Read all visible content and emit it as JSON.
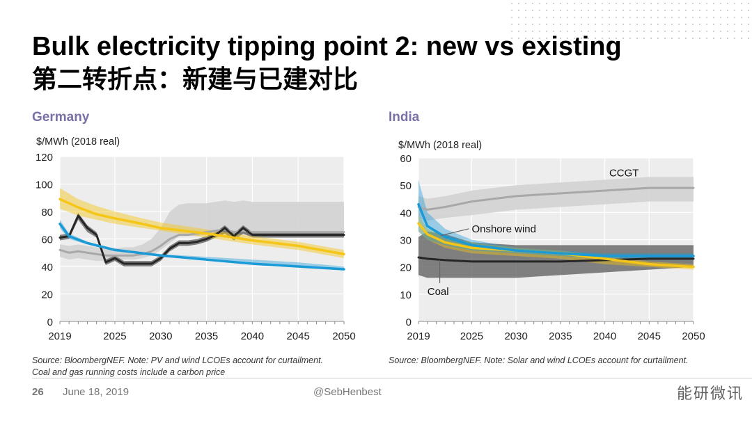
{
  "title": "Bulk electricity tipping point 2: new vs existing",
  "subtitle": "第二转折点：新建与已建对比",
  "footer": {
    "page": "26",
    "date": "June 18, 2019",
    "handle": "@SebHenbest"
  },
  "watermark": "能研微讯",
  "colors": {
    "solar": "#f5c518",
    "wind": "#1b9ad6",
    "gas_band": "#d0d0d0",
    "gas_line": "#a8a8a8",
    "coal_band": "#595959",
    "coal_line": "#262626",
    "heading": "#7b6fa8"
  },
  "chart_data": [
    {
      "type": "line",
      "title": "Germany",
      "ylabel": "$/MWh (2018 real)",
      "xlim": [
        2019,
        2050
      ],
      "ylim": [
        0,
        120
      ],
      "yticks": [
        "0",
        "20",
        "40",
        "60",
        "80",
        "100",
        "120"
      ],
      "xticks": [
        "2019",
        "2025",
        "2030",
        "2035",
        "2040",
        "2045",
        "2050"
      ],
      "grid": true,
      "legend": "none",
      "source": "Source: BloombergNEF. Note: PV and wind LCOEs account for curtailment.",
      "source2": "Coal and gas running costs include a carbon price",
      "series": [
        {
          "key": "gas",
          "x": [
            2019,
            2020,
            2021,
            2022,
            2023,
            2024,
            2025,
            2026,
            2027,
            2028,
            2029,
            2030,
            2031,
            2032,
            2033,
            2034,
            2035,
            2036,
            2037,
            2038,
            2039,
            2040,
            2042,
            2045,
            2050
          ],
          "lower": [
            47,
            45,
            46,
            45,
            44,
            44,
            45,
            45,
            45,
            46,
            48,
            52,
            57,
            62,
            62,
            62,
            63,
            63,
            64,
            63,
            63,
            63,
            63,
            63,
            63
          ],
          "mid": [
            52,
            50,
            51,
            50,
            49,
            48,
            48,
            48,
            48,
            49,
            51,
            55,
            60,
            63,
            63,
            64,
            65,
            66,
            67,
            65,
            66,
            65,
            65,
            65,
            65
          ],
          "upper": [
            56,
            55,
            56,
            55,
            54,
            53,
            53,
            54,
            54,
            56,
            60,
            68,
            80,
            85,
            86,
            86,
            86,
            87,
            88,
            87,
            88,
            87,
            87,
            87,
            87
          ]
        },
        {
          "key": "coal",
          "x": [
            2019,
            2020,
            2021,
            2022,
            2023,
            2024,
            2025,
            2026,
            2027,
            2028,
            2029,
            2030,
            2031,
            2032,
            2033,
            2034,
            2035,
            2036,
            2037,
            2038,
            2039,
            2040,
            2042,
            2045,
            2050
          ],
          "lower": [
            59,
            60,
            74,
            65,
            61,
            41,
            44,
            40,
            40,
            40,
            40,
            44,
            51,
            55,
            55,
            56,
            58,
            61,
            64,
            59,
            64,
            61,
            61,
            61,
            61
          ],
          "mid": [
            61,
            62,
            77,
            68,
            63,
            43,
            46,
            42,
            42,
            42,
            42,
            46,
            53,
            57,
            57,
            58,
            60,
            63,
            68,
            62,
            68,
            63,
            63,
            63,
            63
          ],
          "upper": [
            63,
            64,
            79,
            70,
            65,
            45,
            48,
            44,
            44,
            44,
            44,
            48,
            55,
            59,
            59,
            60,
            62,
            65,
            70,
            64,
            70,
            65,
            65,
            65,
            65
          ]
        },
        {
          "key": "solar",
          "x": [
            2019,
            2021,
            2023,
            2025,
            2028,
            2030,
            2035,
            2040,
            2045,
            2050
          ],
          "lower": [
            82,
            77,
            74,
            71,
            68,
            66,
            61,
            56,
            52,
            46
          ],
          "mid": [
            89,
            83,
            78,
            75,
            71,
            68,
            64,
            59,
            55,
            49
          ],
          "upper": [
            97,
            89,
            84,
            80,
            75,
            72,
            67,
            62,
            58,
            52
          ]
        },
        {
          "key": "wind",
          "x": [
            2019,
            2020,
            2022,
            2025,
            2030,
            2035,
            2040,
            2045,
            2050
          ],
          "lower": [
            68,
            60,
            56,
            51,
            48,
            46,
            43,
            40,
            37
          ],
          "mid": [
            71,
            62,
            57,
            52,
            48,
            45,
            42,
            40,
            38
          ],
          "upper": [
            74,
            64,
            58,
            53,
            49,
            47,
            45,
            43,
            40
          ]
        }
      ]
    },
    {
      "type": "line",
      "title": "India",
      "ylabel": "$/MWh (2018 real)",
      "xlim": [
        2019,
        2050
      ],
      "ylim": [
        0,
        60
      ],
      "yticks": [
        "0",
        "10",
        "20",
        "30",
        "40",
        "50",
        "60"
      ],
      "xticks": [
        "2019",
        "2025",
        "2030",
        "2035",
        "2040",
        "2045",
        "2050"
      ],
      "grid": true,
      "legend": "none",
      "source": "Source: BloombergNEF. Note: Solar and wind LCOEs account for curtailment.",
      "annotations": [
        {
          "text": "CCGT",
          "x": 2040.5,
          "y": 54.5
        },
        {
          "text": "Onshore wind",
          "x": 2025,
          "y": 34
        },
        {
          "text": "Coal",
          "x": 2020,
          "y": 11
        }
      ],
      "series": [
        {
          "key": "gas",
          "x": [
            2019,
            2020,
            2022,
            2025,
            2030,
            2035,
            2040,
            2045,
            2050
          ],
          "lower": [
            38,
            37,
            38,
            39,
            41,
            42,
            43,
            44,
            44
          ],
          "mid": [
            42,
            41,
            42,
            44,
            46,
            47,
            48,
            49,
            49
          ],
          "upper": [
            46,
            45,
            46,
            48,
            50,
            51,
            52,
            53,
            53
          ]
        },
        {
          "key": "coal",
          "x": [
            2019,
            2020,
            2022,
            2025,
            2030,
            2035,
            2040,
            2045,
            2050
          ],
          "lower": [
            17,
            16,
            16,
            16,
            16,
            17,
            18,
            19,
            20
          ],
          "mid": [
            23.5,
            23,
            22.5,
            22,
            22,
            22,
            22.5,
            23,
            23
          ],
          "upper": [
            31,
            33,
            32,
            29,
            28,
            28,
            28,
            28,
            28
          ]
        },
        {
          "key": "solar",
          "x": [
            2019,
            2020,
            2022,
            2025,
            2030,
            2035,
            2040,
            2045,
            2050
          ],
          "lower": [
            33,
            30,
            27,
            25,
            24,
            23,
            21,
            20,
            19
          ],
          "mid": [
            36,
            32,
            29,
            27,
            26,
            25,
            23,
            21,
            20
          ],
          "upper": [
            39,
            34,
            31,
            29,
            27,
            26,
            24,
            22,
            21
          ]
        },
        {
          "key": "wind",
          "x": [
            2019,
            2020,
            2022,
            2025,
            2030,
            2035,
            2040,
            2045,
            2050
          ],
          "lower": [
            33,
            30,
            28,
            26,
            25,
            24,
            23,
            23,
            23
          ],
          "mid": [
            43,
            35,
            31,
            28,
            26,
            25,
            24,
            24,
            24
          ],
          "upper": [
            52,
            40,
            34,
            30,
            27,
            26,
            25,
            25,
            25
          ]
        }
      ]
    }
  ]
}
